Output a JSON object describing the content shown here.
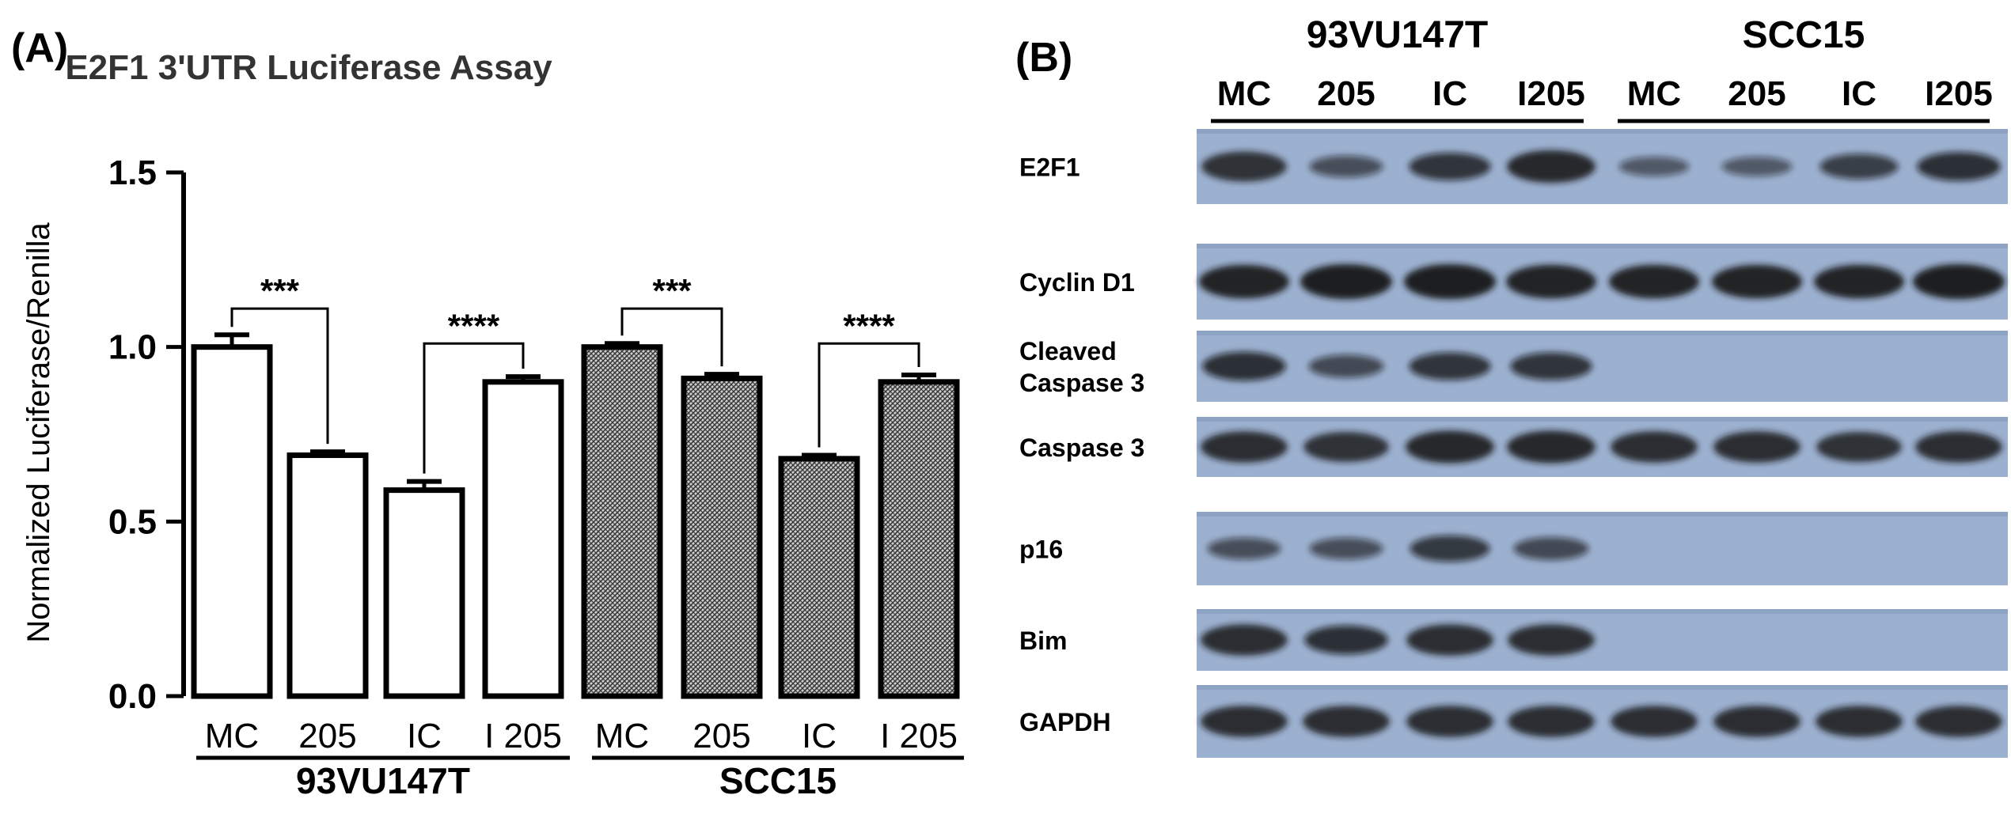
{
  "panel_a": {
    "label": "(A)"
  },
  "panel_b": {
    "label": "(B)"
  },
  "chart_data": {
    "type": "bar",
    "title": "E2F1 3'UTR Luciferase Assay",
    "xlabel": "",
    "ylabel": "Normalized Luciferase/Renilla",
    "ylim": [
      0,
      1.5
    ],
    "yticks": [
      "0.0",
      "0.5",
      "1.0",
      "1.5"
    ],
    "categories": [
      "MC",
      "205",
      "IC",
      "I 205",
      "MC",
      "205",
      "IC",
      "I 205"
    ],
    "groups": [
      "93VU147T",
      "SCC15"
    ],
    "values": [
      1.0,
      0.69,
      0.59,
      0.9,
      1.0,
      0.91,
      0.68,
      0.9
    ],
    "errors": [
      0.035,
      0.01,
      0.025,
      0.015,
      0.01,
      0.012,
      0.01,
      0.02
    ],
    "fill": [
      "white",
      "white",
      "white",
      "white",
      "hatched",
      "hatched",
      "hatched",
      "hatched"
    ],
    "significance": [
      {
        "from": 0,
        "to": 1,
        "label": "***"
      },
      {
        "from": 2,
        "to": 3,
        "label": "****"
      },
      {
        "from": 4,
        "to": 5,
        "label": "***"
      },
      {
        "from": 6,
        "to": 7,
        "label": "****"
      }
    ],
    "grid": false
  },
  "blot": {
    "groups": [
      "93VU147T",
      "SCC15"
    ],
    "lanes": [
      "MC",
      "205",
      "IC",
      "I205",
      "MC",
      "205",
      "IC",
      "I205"
    ],
    "rows": [
      {
        "label": "E2F1",
        "intensity": [
          0.8,
          0.45,
          0.7,
          0.9,
          0.35,
          0.35,
          0.6,
          0.75
        ]
      },
      {
        "label": "Cyclin D1",
        "intensity": [
          0.95,
          1.0,
          1.0,
          0.95,
          0.95,
          0.95,
          0.95,
          1.0
        ]
      },
      {
        "label": "Cleaved\nCaspase 3",
        "intensity": [
          0.75,
          0.5,
          0.7,
          0.7,
          0,
          0,
          0,
          0
        ]
      },
      {
        "label": "Caspase 3",
        "intensity": [
          0.85,
          0.8,
          0.9,
          0.9,
          0.85,
          0.85,
          0.8,
          0.85
        ]
      },
      {
        "label": "p16",
        "intensity": [
          0.45,
          0.45,
          0.65,
          0.5,
          0,
          0,
          0,
          0
        ]
      },
      {
        "label": "Bim",
        "intensity": [
          0.85,
          0.75,
          0.85,
          0.85,
          0,
          0,
          0,
          0
        ]
      },
      {
        "label": "GAPDH",
        "intensity": [
          0.85,
          0.85,
          0.85,
          0.85,
          0.85,
          0.85,
          0.85,
          0.85
        ]
      }
    ]
  }
}
